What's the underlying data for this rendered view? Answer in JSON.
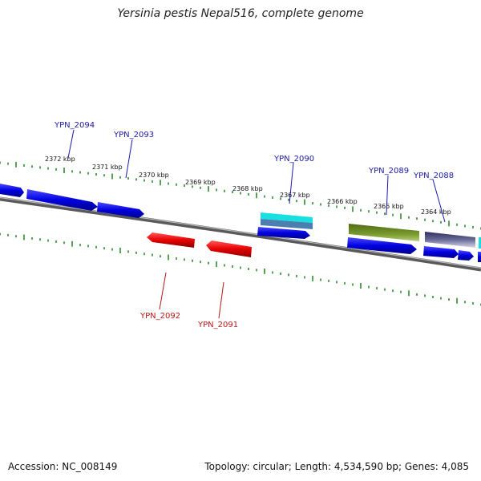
{
  "title": "Yersinia pestis Nepal516, complete genome",
  "accession": "Accession: NC_008149",
  "summary": "Topology: circular; Length: 4,534,590 bp; Genes: 4,085",
  "colors": {
    "backbone": "#7a7a7a",
    "ticks": "#2e8b2e",
    "forward_gene": "#0000ee",
    "reverse_gene": "#ee0000",
    "cyan_feature": "#19e0e0",
    "olive_feature": "#6b8e23",
    "slate_feature": "#48487a"
  },
  "scale": {
    "labels": [
      "2372 kbp",
      "2371 kbp",
      "2370 kbp",
      "2369 kbp",
      "2368 kbp",
      "2367 kbp",
      "2366 kbp",
      "2365 kbp",
      "2364 kbp"
    ]
  },
  "genes": {
    "forward": [
      "YPN_2094",
      "YPN_2093",
      "YPN_2090",
      "YPN_2089",
      "YPN_2088"
    ],
    "reverse": [
      "YPN_2092",
      "YPN_2091"
    ]
  }
}
